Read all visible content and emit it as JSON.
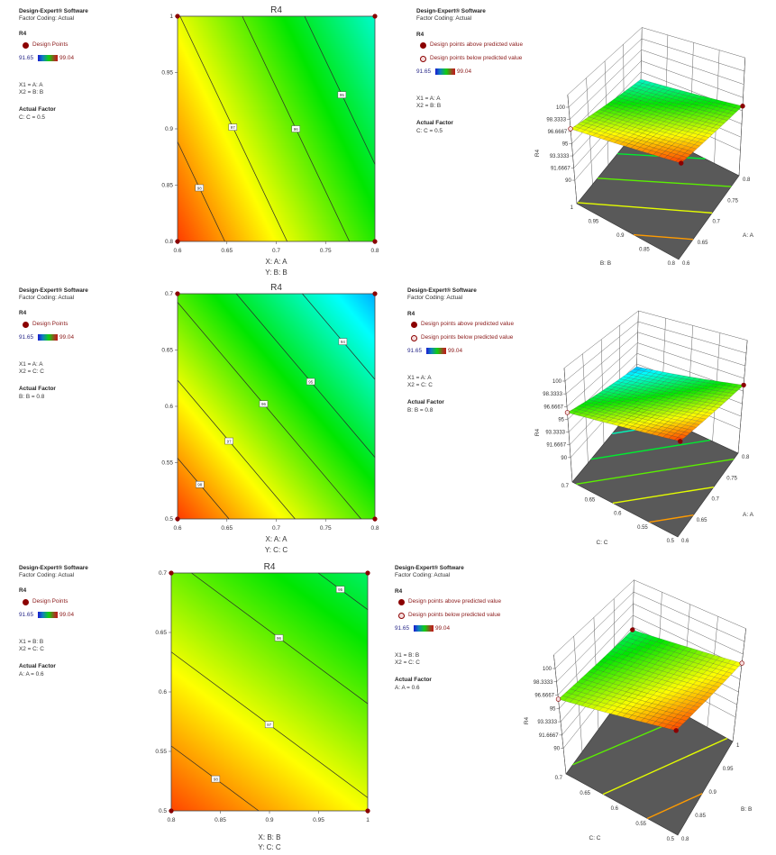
{
  "colormap": {
    "min": 91.65,
    "max": 99.04,
    "colors": [
      "#0000ff",
      "#00ffff",
      "#00e600",
      "#ffff00",
      "#ff1a00"
    ]
  },
  "point_colors": {
    "above": "#8b0000",
    "below": "#f6dede"
  },
  "legends": [
    {
      "left": {
        "software": "Design-Expert® Software",
        "coding": "Factor Coding: Actual",
        "response": "R4",
        "points": "Design Points",
        "min": "91.65",
        "max": "99.04",
        "x1": "X1 = A: A",
        "x2": "X2 = B: B",
        "actual_title": "Actual Factor",
        "actual": "C: C = 0.5"
      },
      "right": {
        "software": "Design-Expert® Software",
        "coding": "Factor Coding: Actual",
        "response": "R4",
        "above": "Design points above predicted value",
        "below": "Design points below predicted value",
        "min": "91.65",
        "max": "99.04",
        "x1": "X1 = A: A",
        "x2": "X2 = B: B",
        "actual_title": "Actual Factor",
        "actual": "C: C = 0.5"
      }
    },
    {
      "left": {
        "software": "Design-Expert® Software",
        "coding": "Factor Coding: Actual",
        "response": "R4",
        "points": "Design Points",
        "min": "91.65",
        "max": "99.04",
        "x1": "X1 = A: A",
        "x2": "X2 = C: C",
        "actual_title": "Actual Factor",
        "actual": "B: B = 0.8"
      },
      "right": {
        "software": "Design-Expert® Software",
        "coding": "Factor Coding: Actual",
        "response": "R4",
        "above": "Design points above predicted value",
        "below": "Design points below predicted value",
        "min": "91.65",
        "max": "99.04",
        "x1": "X1 = A: A",
        "x2": "X2 = C: C",
        "actual_title": "Actual Factor",
        "actual": "B: B = 0.8"
      }
    },
    {
      "left": {
        "software": "Design-Expert® Software",
        "coding": "Factor Coding: Actual",
        "response": "R4",
        "points": "Design Points",
        "min": "91.65",
        "max": "99.04",
        "x1": "X1 = B: B",
        "x2": "X2 = C: C",
        "actual_title": "Actual Factor",
        "actual": "A: A = 0.6"
      },
      "right": {
        "software": "Design-Expert® Software",
        "coding": "Factor Coding: Actual",
        "response": "R4",
        "above": "Design points above predicted value",
        "below": "Design points below predicted value",
        "min": "91.65",
        "max": "99.04",
        "x1": "X1 = B: B",
        "x2": "X2 = C: C",
        "actual_title": "Actual Factor",
        "actual": "A: A = 0.6"
      }
    }
  ],
  "chart_data": [
    {
      "type": "contour",
      "title": "R4",
      "xlabel": "X: A: A",
      "ylabel": "Y: B: B",
      "xlim": [
        0.6,
        0.8
      ],
      "ylim": [
        0.8,
        1.0
      ],
      "x_ticks": [
        "0.6",
        "0.65",
        "0.7",
        "0.75",
        "0.8"
      ],
      "y_ticks": [
        "0.8",
        "0.85",
        "0.9",
        "0.95",
        "1"
      ],
      "z_corners": [
        [
          98.76,
          95.59
        ],
        [
          97.04,
          93.87
        ]
      ],
      "contours": [
        {
          "level": 98,
          "label": "98",
          "label_at": [
            0.621,
            0.847
          ]
        },
        {
          "level": 97,
          "label": "97",
          "label_at": [
            0.657,
            0.902
          ]
        },
        {
          "level": 96,
          "label": "96",
          "label_at": [
            0.72,
            0.9
          ]
        },
        {
          "level": 95,
          "label": "95",
          "label_at": [
            0.768,
            0.931
          ]
        }
      ],
      "design_points": [
        [
          0.6,
          0.8
        ],
        [
          0.8,
          0.8
        ],
        [
          0.6,
          1.0
        ],
        [
          0.8,
          1.0
        ]
      ]
    },
    {
      "type": "surface",
      "zlabel": "R4",
      "xlabel": "A: A",
      "ylabel": "B: B",
      "x_ticks": [
        "0.6",
        "0.65",
        "0.7",
        "0.75",
        "0.8"
      ],
      "y_ticks": [
        "0.8",
        "0.85",
        "0.9",
        "0.95",
        "1"
      ],
      "z_ticks": [
        "90",
        "91.6667",
        "93.3333",
        "95",
        "96.6667",
        "98.3333",
        "100"
      ],
      "zlim": [
        90,
        100
      ],
      "z_corners": [
        [
          98.76,
          95.59
        ],
        [
          97.04,
          93.87
        ]
      ],
      "floor_contours": [
        95,
        96,
        97,
        98
      ],
      "design_points": [
        {
          "x": 0.6,
          "y": 0.8,
          "kind": "above"
        },
        {
          "x": 0.8,
          "y": 0.8,
          "kind": "above"
        },
        {
          "x": 0.6,
          "y": 1.0,
          "kind": "below"
        }
      ]
    },
    {
      "type": "contour",
      "title": "R4",
      "xlabel": "X: A: A",
      "ylabel": "Y: C: C",
      "xlim": [
        0.6,
        0.8
      ],
      "ylim": [
        0.5,
        0.7
      ],
      "x_ticks": [
        "0.6",
        "0.65",
        "0.7",
        "0.75",
        "0.8"
      ],
      "y_ticks": [
        "0.5",
        "0.55",
        "0.6",
        "0.65",
        "0.7"
      ],
      "z_corners": [
        [
          98.78,
          95.79
        ],
        [
          95.89,
          92.9
        ]
      ],
      "contours": [
        {
          "level": 98,
          "label": "98",
          "label_at": [
            0.621,
            0.529
          ]
        },
        {
          "level": 97,
          "label": "97",
          "label_at": [
            0.652,
            0.569
          ]
        },
        {
          "level": 96,
          "label": "96",
          "label_at": [
            0.687,
            0.602
          ]
        },
        {
          "level": 95,
          "label": "95",
          "label_at": [
            0.735,
            0.622
          ]
        },
        {
          "level": 94,
          "label": "94",
          "label_at": [
            0.768,
            0.658
          ]
        }
      ],
      "design_points": [
        [
          0.6,
          0.5
        ],
        [
          0.8,
          0.5
        ],
        [
          0.6,
          0.7
        ],
        [
          0.8,
          0.7
        ]
      ]
    },
    {
      "type": "surface",
      "zlabel": "R4",
      "xlabel": "A: A",
      "ylabel": "C: C",
      "x_ticks": [
        "0.6",
        "0.65",
        "0.7",
        "0.75",
        "0.8"
      ],
      "y_ticks": [
        "0.5",
        "0.55",
        "0.6",
        "0.65",
        "0.7"
      ],
      "z_ticks": [
        "90",
        "91.6667",
        "93.3333",
        "95",
        "96.6667",
        "98.3333",
        "100"
      ],
      "zlim": [
        90,
        100
      ],
      "z_corners": [
        [
          98.78,
          95.79
        ],
        [
          95.89,
          92.9
        ]
      ],
      "floor_contours": [
        94,
        95,
        96,
        97,
        98
      ],
      "design_points": [
        {
          "x": 0.6,
          "y": 0.5,
          "kind": "above"
        },
        {
          "x": 0.8,
          "y": 0.5,
          "kind": "above"
        },
        {
          "x": 0.6,
          "y": 0.7,
          "kind": "below"
        }
      ]
    },
    {
      "type": "contour",
      "title": "R4",
      "xlabel": "X: B: B",
      "ylabel": "Y: C: C",
      "xlim": [
        0.8,
        1.0
      ],
      "ylim": [
        0.5,
        0.7
      ],
      "x_ticks": [
        "0.8",
        "0.85",
        "0.9",
        "0.95",
        "1"
      ],
      "y_ticks": [
        "0.5",
        "0.55",
        "0.6",
        "0.65",
        "0.7"
      ],
      "z_corners": [
        [
          98.69,
          97.14
        ],
        [
          96.16,
          94.61
        ]
      ],
      "contours": [
        {
          "level": 98,
          "label": "98",
          "label_at": [
            0.846,
            0.528
          ]
        },
        {
          "level": 97,
          "label": "97",
          "label_at": [
            0.9,
            0.573
          ]
        },
        {
          "level": 96,
          "label": "96",
          "label_at": [
            0.91,
            0.646
          ]
        },
        {
          "level": 95,
          "label": "95",
          "label_at": [
            0.972,
            0.686
          ]
        }
      ],
      "design_points": [
        [
          0.8,
          0.5
        ],
        [
          1.0,
          0.5
        ],
        [
          0.8,
          0.7
        ],
        [
          1.0,
          0.7
        ]
      ]
    },
    {
      "type": "surface",
      "zlabel": "R4",
      "xlabel": "B: B",
      "ylabel": "C: C",
      "x_ticks": [
        "0.8",
        "0.85",
        "0.9",
        "0.95",
        "1"
      ],
      "y_ticks": [
        "0.5",
        "0.55",
        "0.6",
        "0.65",
        "0.7"
      ],
      "z_ticks": [
        "90",
        "91.6667",
        "93.3333",
        "95",
        "96.6667",
        "98.3333",
        "100"
      ],
      "zlim": [
        90,
        100
      ],
      "z_corners": [
        [
          98.69,
          97.14
        ],
        [
          96.16,
          94.61
        ]
      ],
      "floor_contours": [
        95,
        96,
        97,
        98
      ],
      "design_points": [
        {
          "x": 0.8,
          "y": 0.5,
          "kind": "above"
        },
        {
          "x": 1.0,
          "y": 0.7,
          "kind": "above"
        },
        {
          "x": 1.0,
          "y": 0.5,
          "kind": "below"
        },
        {
          "x": 0.8,
          "y": 0.7,
          "kind": "below"
        }
      ]
    }
  ]
}
